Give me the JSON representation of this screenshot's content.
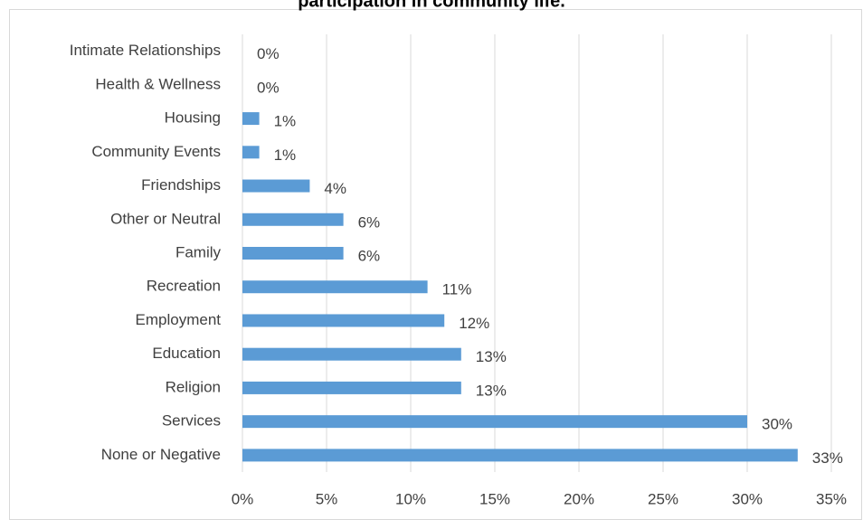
{
  "chart_data": {
    "type": "bar",
    "orientation": "horizontal",
    "title": "participation in community life.",
    "categories": [
      "Intimate Relationships",
      "Health & Wellness",
      "Housing",
      "Community Events",
      "Friendships",
      "Other or Neutral",
      "Family",
      "Recreation",
      "Employment",
      "Education",
      "Religion",
      "Services",
      "None or Negative"
    ],
    "values": [
      0,
      0,
      1,
      1,
      4,
      6,
      6,
      11,
      12,
      13,
      13,
      30,
      33
    ],
    "value_labels": [
      "0%",
      "0%",
      "1%",
      "1%",
      "4%",
      "6%",
      "6%",
      "11%",
      "12%",
      "13%",
      "13%",
      "30%",
      "33%"
    ],
    "color": "#5b9bd5",
    "xlim": [
      0,
      35
    ],
    "xticks": [
      {
        "value": 0,
        "label": "0%"
      },
      {
        "value": 5,
        "label": "5%"
      },
      {
        "value": 10,
        "label": "10%"
      },
      {
        "value": 15,
        "label": "15%"
      },
      {
        "value": 20,
        "label": "20%"
      },
      {
        "value": 25,
        "label": "25%"
      },
      {
        "value": 30,
        "label": "30%"
      },
      {
        "value": 35,
        "label": "35%"
      }
    ],
    "grid": true
  }
}
